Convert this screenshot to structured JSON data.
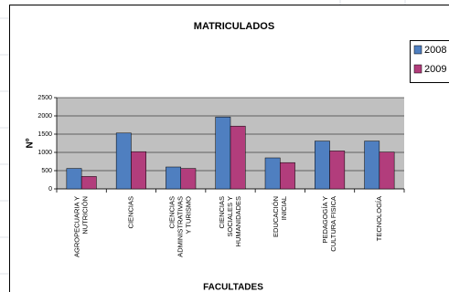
{
  "chart_data": {
    "type": "bar",
    "title": "MATRICULADOS",
    "x_label": "FACULTADES",
    "y_label": "Nº",
    "categories": [
      "AGROPECUARIA Y\nNUTRICIÓN",
      "CIENCIAS",
      "CIENCIAS\nADMINISTRATIVAS\nY TURISMO",
      "CIENCIAS\nSOCIALES Y\nHUMANIDADES",
      "EDUCACIÓN\nINICIAL",
      "PEDAGOGÍA Y\nCULTURA FISICA",
      "TECNOLOGÍA"
    ],
    "series": [
      {
        "name": "2008",
        "color": "#4f7fc0",
        "values": [
          560,
          1530,
          600,
          1970,
          850,
          1310,
          1310
        ]
      },
      {
        "name": "2009",
        "color": "#b23d7c",
        "values": [
          340,
          1020,
          560,
          1720,
          720,
          1040,
          1010
        ]
      }
    ],
    "ylim": [
      0,
      2500
    ],
    "yticks": [
      0,
      500,
      1000,
      1500,
      2000,
      2500
    ],
    "grid": true,
    "legend": "right"
  }
}
